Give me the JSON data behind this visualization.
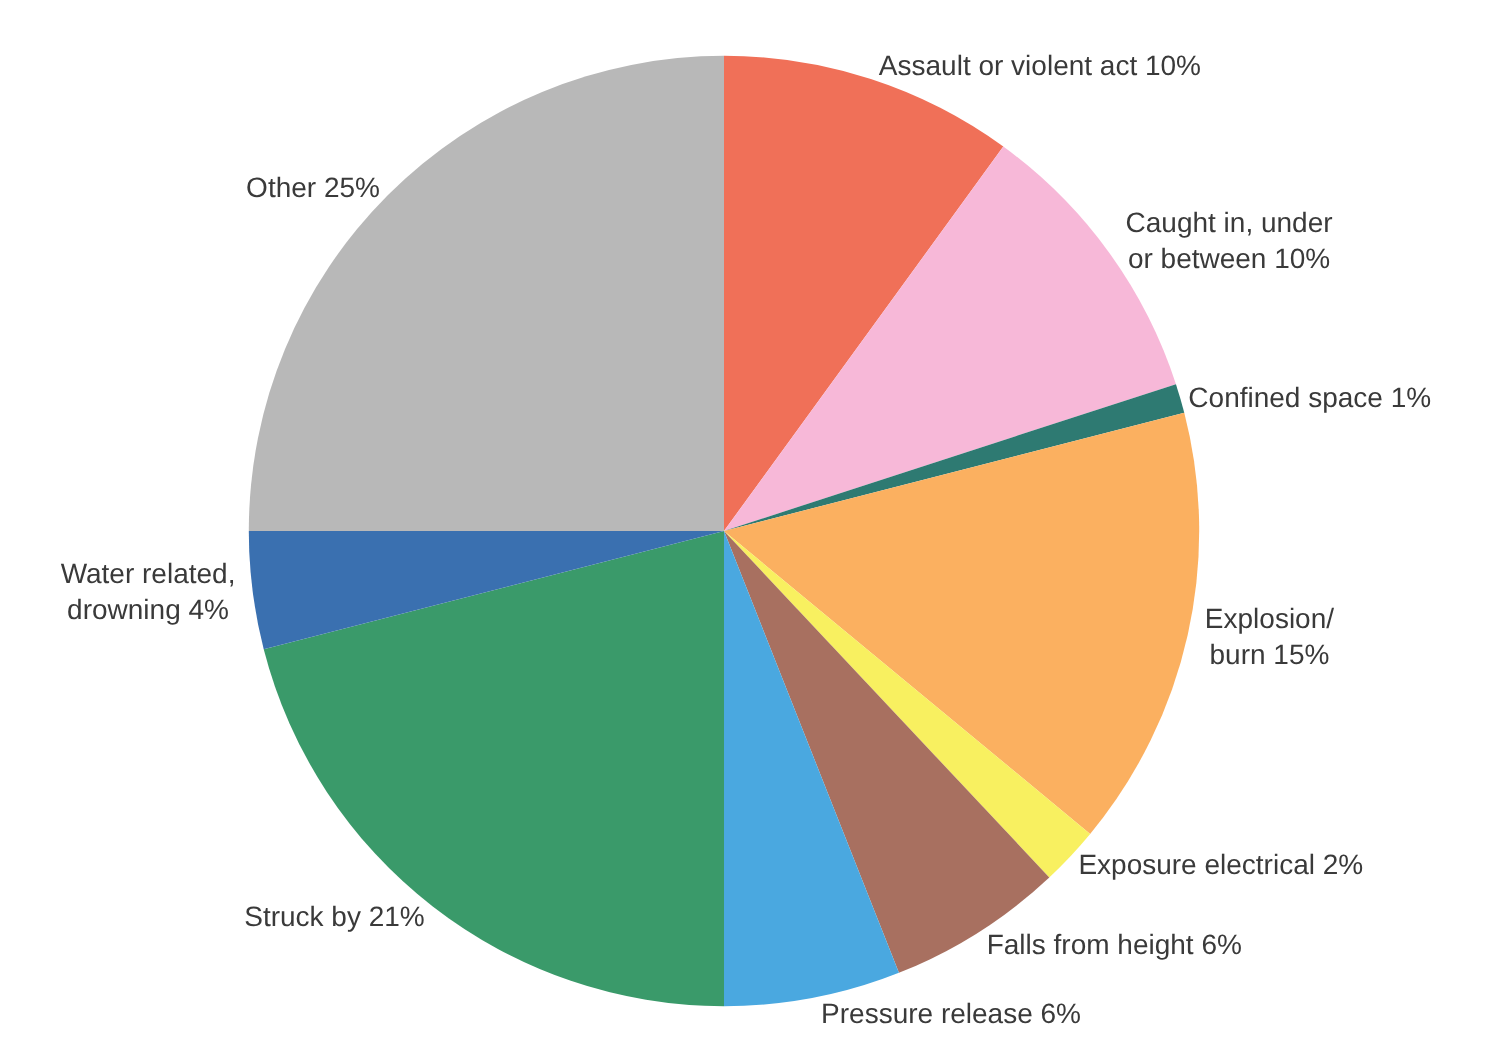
{
  "chart_data": {
    "type": "pie",
    "categories": [
      "Assault or violent act",
      "Caught in, under\nor between",
      "Confined space",
      "Explosion/\nburn",
      "Exposure electrical",
      "Falls from height",
      "Pressure release",
      "Struck by",
      "Water related,\ndrowning",
      "Other"
    ],
    "values": [
      10,
      10,
      1,
      15,
      2,
      6,
      6,
      21,
      4,
      25
    ],
    "value_labels": [
      "10%",
      "10%",
      "1%",
      "15%",
      "2%",
      "6%",
      "6%",
      "21%",
      "4%",
      "25%"
    ],
    "colors": [
      "#f07058",
      "#f7b8d8",
      "#2e7a72",
      "#fbb060",
      "#f8f060",
      "#a87060",
      "#4aa8e0",
      "#3a9a6a",
      "#3a70b0",
      "#b8b8b8"
    ],
    "legend": false
  }
}
